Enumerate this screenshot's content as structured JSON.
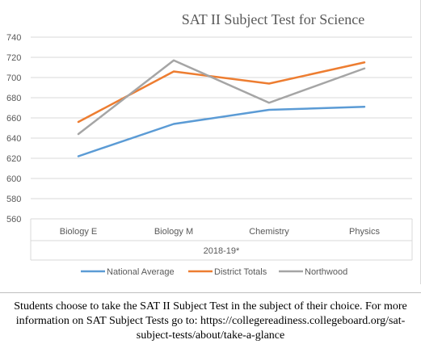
{
  "chart_data": {
    "type": "line",
    "title": "SAT II Subject Test for Science",
    "xlabel": "2018-19*",
    "ylabel": "",
    "categories": [
      "Biology E",
      "Biology M",
      "Chemistry",
      "Physics"
    ],
    "ylim": [
      560,
      740
    ],
    "yticks": [
      560,
      580,
      600,
      620,
      640,
      660,
      680,
      700,
      720,
      740
    ],
    "grid": true,
    "legend_position": "bottom",
    "series": [
      {
        "name": "National Average",
        "color": "#5b9bd5",
        "values": [
          622,
          654,
          668,
          671
        ]
      },
      {
        "name": "District Totals",
        "color": "#ed7d31",
        "values": [
          656,
          706,
          694,
          715
        ]
      },
      {
        "name": "Northwood",
        "color": "#a5a5a5",
        "values": [
          644,
          717,
          675,
          709
        ]
      }
    ]
  },
  "caption": {
    "text": "Students choose to take the SAT II Subject Test in the subject of their choice. For more information on SAT Subject Tests go to: https://collegereadiness.collegeboard.org/sat-subject-tests/about/take-a-glance"
  }
}
